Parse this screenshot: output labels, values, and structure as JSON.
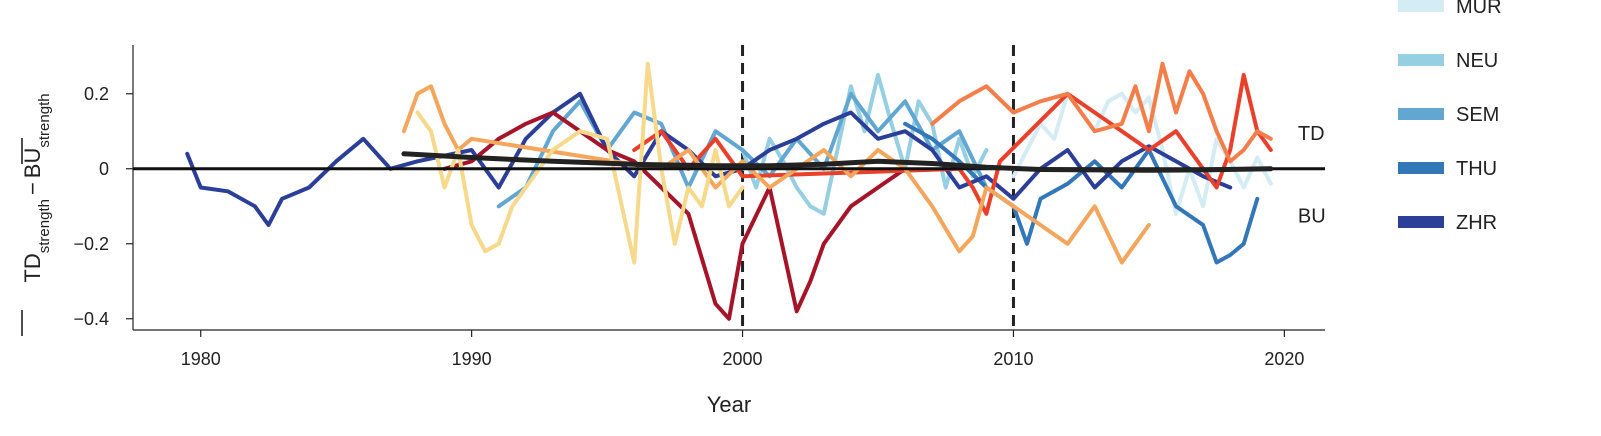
{
  "chart_data": {
    "type": "line",
    "title": "",
    "xlabel": "Year",
    "ylabel": {
      "td": "TD",
      "td_sub": "strength",
      "minus": "−",
      "bu": "BU",
      "bu_sub": "strength"
    },
    "xlim": [
      1977.5,
      2021.5
    ],
    "ylim": [
      -0.43,
      0.33
    ],
    "xticks": [
      {
        "value": 1980,
        "label": "1980"
      },
      {
        "value": 1990,
        "label": "1990"
      },
      {
        "value": 2000,
        "label": "2000"
      },
      {
        "value": 2010,
        "label": "2010"
      },
      {
        "value": 2020,
        "label": "2020"
      }
    ],
    "yticks": [
      {
        "value": 0.2,
        "label": "0.2"
      },
      {
        "value": 0,
        "label": "0"
      },
      {
        "value": -0.2,
        "label": "−0.2"
      },
      {
        "value": -0.4,
        "label": "−0.4"
      }
    ],
    "grid": false,
    "legend_position": "right",
    "reference_lines": {
      "zero_line": 0,
      "vertical_dashed": [
        2000,
        2010
      ]
    },
    "annotations": [
      {
        "text": "TD",
        "x": 2020.5,
        "y": 0.095
      },
      {
        "text": "BU",
        "x": 2020.5,
        "y": -0.125
      }
    ],
    "trend": {
      "color": "#222222",
      "x": [
        1987.5,
        1990,
        1993,
        1996,
        1999,
        2001,
        2003,
        2005,
        2007,
        2009,
        2011,
        2013,
        2015,
        2017,
        2019.5
      ],
      "y": [
        0.04,
        0.03,
        0.02,
        0.012,
        0.008,
        0.008,
        0.012,
        0.02,
        0.014,
        0.004,
        -0.002,
        -0.003,
        -0.004,
        -0.003,
        0.0
      ]
    },
    "series": [
      {
        "name": "MUR",
        "color": "#d4ecf4",
        "x": [
          2010.0,
          2010.5,
          2011.0,
          2011.5,
          2012.0,
          2012.5,
          2013.0,
          2013.5,
          2014.0,
          2014.5,
          2015.0,
          2015.5,
          2016.0,
          2016.5,
          2017.0,
          2017.5,
          2018.0,
          2018.5,
          2019.0,
          2019.5
        ],
        "y": [
          -0.02,
          0.05,
          0.12,
          0.08,
          0.2,
          0.15,
          0.1,
          0.18,
          0.2,
          0.15,
          0.19,
          0.05,
          -0.12,
          0.0,
          -0.1,
          0.08,
          0.02,
          -0.05,
          0.03,
          -0.04
        ]
      },
      {
        "name": "NEU",
        "color": "#96cee2",
        "x": [
          2000.0,
          2000.5,
          2001.0,
          2001.5,
          2002.0,
          2002.5,
          2003.0,
          2003.5,
          2004.0,
          2004.5,
          2005.0,
          2005.5,
          2006.0,
          2006.5,
          2007.0,
          2007.5,
          2008.0,
          2008.5,
          2009.0
        ],
        "y": [
          0.05,
          -0.05,
          0.08,
          0.02,
          -0.05,
          -0.1,
          -0.12,
          0.05,
          0.22,
          0.1,
          0.25,
          0.12,
          0.0,
          0.18,
          0.12,
          -0.05,
          0.08,
          -0.02,
          0.05
        ]
      },
      {
        "name": "SEM",
        "color": "#62a7d1",
        "x": [
          1991.0,
          1992.0,
          1993.0,
          1994.0,
          1995.0,
          1996.0,
          1997.0,
          1998.0,
          1999.0,
          2000.0,
          2001.0,
          2002.0,
          2003.0,
          2004.0,
          2005.0,
          2006.0,
          2007.0,
          2008.0,
          2009.0
        ],
        "y": [
          -0.1,
          -0.05,
          0.1,
          0.18,
          0.05,
          0.15,
          0.12,
          -0.05,
          0.1,
          0.05,
          -0.02,
          0.08,
          0.0,
          0.2,
          0.1,
          0.18,
          0.05,
          0.1,
          -0.05
        ]
      },
      {
        "name": "THU",
        "color": "#3477b8",
        "x": [
          2006.0,
          2007.0,
          2008.0,
          2009.0,
          2010.0,
          2010.5,
          2011.0,
          2012.0,
          2013.0,
          2014.0,
          2015.0,
          2016.0,
          2017.0,
          2017.5,
          2018.0,
          2018.5,
          2019.0
        ],
        "y": [
          0.12,
          0.08,
          0.02,
          -0.05,
          -0.1,
          -0.2,
          -0.08,
          -0.04,
          0.02,
          -0.05,
          0.05,
          -0.1,
          -0.15,
          -0.25,
          -0.23,
          -0.2,
          -0.08
        ]
      },
      {
        "name": "ZHR",
        "color": "#2b3f99",
        "x": [
          1979.5,
          1980.0,
          1981.0,
          1982.0,
          1982.5,
          1983.0,
          1984.0,
          1985.0,
          1986.0,
          1987.0,
          1988.0,
          1990.0,
          1991.0,
          1992.0,
          1993.0,
          1994.0,
          1995.0,
          1996.0,
          1997.0,
          1998.0,
          1999.0,
          2000.0,
          2001.0,
          2002.0,
          2003.0,
          2004.0,
          2005.0,
          2006.0,
          2007.0,
          2008.0,
          2009.0,
          2010.0,
          2011.0,
          2012.0,
          2013.0,
          2014.0,
          2015.0,
          2016.0,
          2017.0,
          2018.0
        ],
        "y": [
          0.04,
          -0.05,
          -0.06,
          -0.1,
          -0.15,
          -0.08,
          -0.05,
          0.02,
          0.08,
          0.0,
          0.02,
          0.05,
          -0.05,
          0.08,
          0.15,
          0.2,
          0.05,
          -0.02,
          0.1,
          0.05,
          -0.02,
          0.0,
          0.05,
          0.08,
          0.12,
          0.15,
          0.08,
          0.1,
          0.05,
          -0.05,
          -0.02,
          -0.08,
          0.0,
          0.05,
          -0.05,
          0.02,
          0.06,
          0.02,
          -0.02,
          -0.05
        ]
      },
      {
        "color": "#a51428",
        "x": [
          1989.0,
          1990.0,
          1991.0,
          1992.0,
          1993.0,
          1994.0,
          1995.0,
          1996.0,
          1997.0,
          1998.0,
          1999.0,
          1999.5,
          2000.0,
          2001.0,
          2002.0,
          2002.5,
          2003.0,
          2004.0,
          2005.0,
          2006.0
        ],
        "y": [
          0.0,
          0.02,
          0.08,
          0.12,
          0.15,
          0.1,
          0.05,
          0.02,
          -0.05,
          -0.12,
          -0.36,
          -0.4,
          -0.2,
          -0.05,
          -0.38,
          -0.3,
          -0.2,
          -0.1,
          -0.05,
          0.0
        ]
      },
      {
        "color": "#e8402a",
        "x": [
          1996.0,
          1997.0,
          1998.0,
          1999.0,
          2000.0,
          2008.0,
          2008.5,
          2009.0,
          2009.5,
          2012.0,
          2013.0,
          2014.0,
          2015.0,
          2016.0,
          2017.0,
          2017.5,
          2018.0,
          2018.5,
          2019.0,
          2019.5
        ],
        "y": [
          0.05,
          0.1,
          0.0,
          0.08,
          -0.02,
          0.0,
          -0.05,
          -0.12,
          0.02,
          0.2,
          0.15,
          0.1,
          0.05,
          0.1,
          0.0,
          -0.05,
          0.05,
          0.25,
          0.1,
          0.05
        ]
      },
      {
        "color": "#f47e4a",
        "x": [
          2007.0,
          2008.0,
          2009.0,
          2010.0,
          2011.0,
          2012.0,
          2013.0,
          2014.0,
          2014.5,
          2015.0,
          2015.5,
          2016.0,
          2016.5,
          2017.0,
          2017.5,
          2018.0,
          2018.5,
          2019.0,
          2019.5
        ],
        "y": [
          0.12,
          0.18,
          0.22,
          0.15,
          0.18,
          0.2,
          0.1,
          0.12,
          0.22,
          0.1,
          0.28,
          0.15,
          0.26,
          0.2,
          0.1,
          0.02,
          0.05,
          0.1,
          0.08
        ]
      },
      {
        "color": "#f4a65c",
        "x": [
          1987.5,
          1988.0,
          1988.5,
          1989.0,
          1989.5,
          1990.0,
          1997.0,
          1998.0,
          1999.0,
          2000.0,
          2001.0,
          2002.0,
          2003.0,
          2004.0,
          2005.0,
          2006.0,
          2007.0,
          2008.0,
          2008.5,
          2009.0,
          2010.0,
          2011.0,
          2012.0,
          2013.0,
          2014.0,
          2015.0
        ],
        "y": [
          0.1,
          0.2,
          0.22,
          0.12,
          0.05,
          0.08,
          0.0,
          0.05,
          -0.05,
          0.02,
          -0.05,
          0.0,
          0.05,
          -0.02,
          0.05,
          0.0,
          -0.1,
          -0.22,
          -0.18,
          -0.05,
          -0.1,
          -0.15,
          -0.2,
          -0.1,
          -0.25,
          -0.15
        ]
      },
      {
        "color": "#f7d98c",
        "x": [
          1988.0,
          1988.5,
          1989.0,
          1989.5,
          1990.0,
          1990.5,
          1991.0,
          1991.5,
          1992.0,
          1993.0,
          1994.0,
          1995.0,
          1996.0,
          1996.5,
          1997.0,
          1997.5,
          1998.0,
          1998.5,
          1999.0,
          1999.5,
          2000.0
        ],
        "y": [
          0.15,
          0.1,
          -0.05,
          0.05,
          -0.15,
          -0.22,
          -0.2,
          -0.1,
          -0.05,
          0.05,
          0.1,
          0.08,
          -0.25,
          0.28,
          0.0,
          -0.2,
          -0.05,
          -0.1,
          0.05,
          -0.1,
          -0.05
        ]
      }
    ]
  }
}
